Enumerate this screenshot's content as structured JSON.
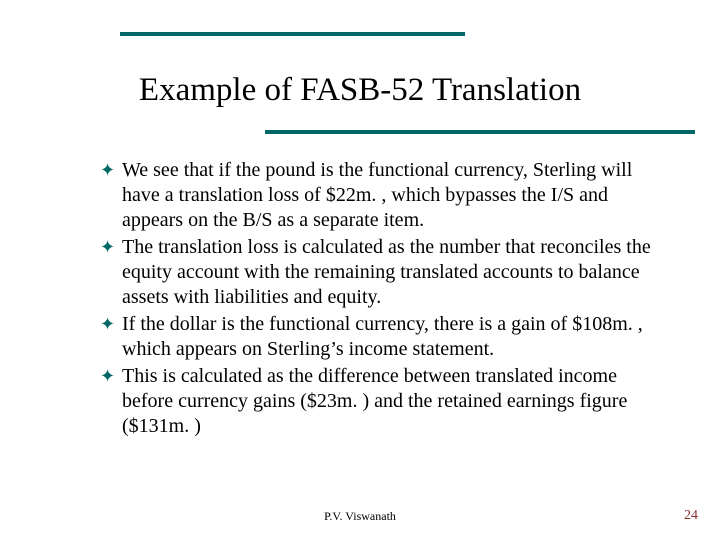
{
  "colors": {
    "accent": "#006666",
    "page_number": "#8a3030",
    "text": "#000000",
    "background": "#ffffff"
  },
  "title": "Example of FASB-52 Translation",
  "bullets": [
    "We see that if the pound is the functional currency, Sterling will have a translation loss of $22m. , which bypasses the I/S and appears on the B/S as a separate item.",
    "The translation loss is calculated as the number that reconciles the equity account with the remaining translated accounts to balance assets with liabilities and equity.",
    "If the dollar is the functional currency, there is a gain of $108m. , which appears on Sterling’s income statement.",
    "This is calculated as the difference between translated income before currency gains ($23m. ) and the retained earnings figure ($131m. )"
  ],
  "bullet_marker": "✦",
  "footer": {
    "author": "P.V. Viswanath",
    "page_number": "24"
  }
}
